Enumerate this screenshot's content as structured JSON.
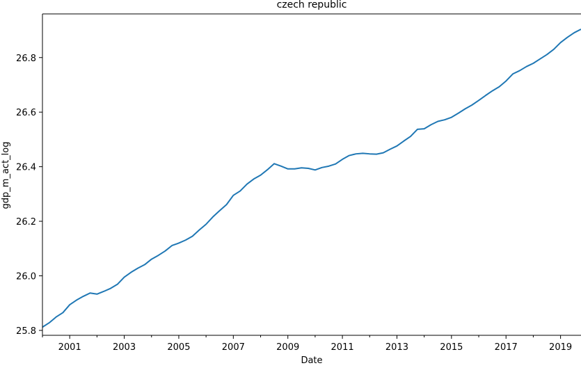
{
  "chart_data": {
    "type": "line",
    "title": "czech republic",
    "xlabel": "Date",
    "ylabel": "gdp_m_act_log",
    "xlim": [
      "2000-01",
      "2019-10"
    ],
    "ylim": [
      25.782,
      26.96
    ],
    "x_ticks": [
      "2001",
      "2003",
      "2005",
      "2007",
      "2009",
      "2011",
      "2013",
      "2015",
      "2017",
      "2019"
    ],
    "y_ticks": [
      "25.8",
      "26.0",
      "26.2",
      "26.4",
      "26.6",
      "26.8"
    ],
    "grid": false,
    "line_color": "#1f77b4",
    "x": [
      "2000-01",
      "2000-04",
      "2000-07",
      "2000-10",
      "2001-01",
      "2001-04",
      "2001-07",
      "2001-10",
      "2002-01",
      "2002-04",
      "2002-07",
      "2002-10",
      "2003-01",
      "2003-04",
      "2003-07",
      "2003-10",
      "2004-01",
      "2004-04",
      "2004-07",
      "2004-10",
      "2005-01",
      "2005-04",
      "2005-07",
      "2005-10",
      "2006-01",
      "2006-04",
      "2006-07",
      "2006-10",
      "2007-01",
      "2007-04",
      "2007-07",
      "2007-10",
      "2008-01",
      "2008-04",
      "2008-07",
      "2008-10",
      "2009-01",
      "2009-04",
      "2009-07",
      "2009-10",
      "2010-01",
      "2010-04",
      "2010-07",
      "2010-10",
      "2011-01",
      "2011-04",
      "2011-07",
      "2011-10",
      "2012-01",
      "2012-04",
      "2012-07",
      "2012-10",
      "2013-01",
      "2013-04",
      "2013-07",
      "2013-10",
      "2014-01",
      "2014-04",
      "2014-07",
      "2014-10",
      "2015-01",
      "2015-04",
      "2015-07",
      "2015-10",
      "2016-01",
      "2016-04",
      "2016-07",
      "2016-10",
      "2017-01",
      "2017-04",
      "2017-07",
      "2017-10",
      "2018-01",
      "2018-04",
      "2018-07",
      "2018-10",
      "2019-01",
      "2019-04",
      "2019-07",
      "2019-10"
    ],
    "values": [
      25.812,
      25.828,
      25.849,
      25.865,
      25.894,
      25.911,
      25.925,
      25.937,
      25.933,
      25.943,
      25.954,
      25.969,
      25.995,
      26.013,
      26.028,
      26.041,
      26.061,
      26.075,
      26.091,
      26.111,
      26.12,
      26.131,
      26.145,
      26.168,
      26.189,
      26.216,
      26.239,
      26.261,
      26.295,
      26.311,
      26.336,
      26.355,
      26.369,
      26.389,
      26.411,
      26.402,
      26.392,
      26.392,
      26.396,
      26.394,
      26.388,
      26.397,
      26.402,
      26.41,
      26.427,
      26.441,
      26.447,
      26.449,
      26.447,
      26.446,
      26.451,
      26.464,
      26.476,
      26.494,
      26.511,
      26.537,
      26.539,
      26.554,
      26.566,
      26.572,
      26.581,
      26.596,
      26.612,
      26.626,
      26.643,
      26.661,
      26.678,
      26.693,
      26.714,
      26.74,
      26.752,
      26.767,
      26.779,
      26.795,
      26.811,
      26.83,
      26.855,
      26.874,
      26.891,
      26.904
    ]
  }
}
